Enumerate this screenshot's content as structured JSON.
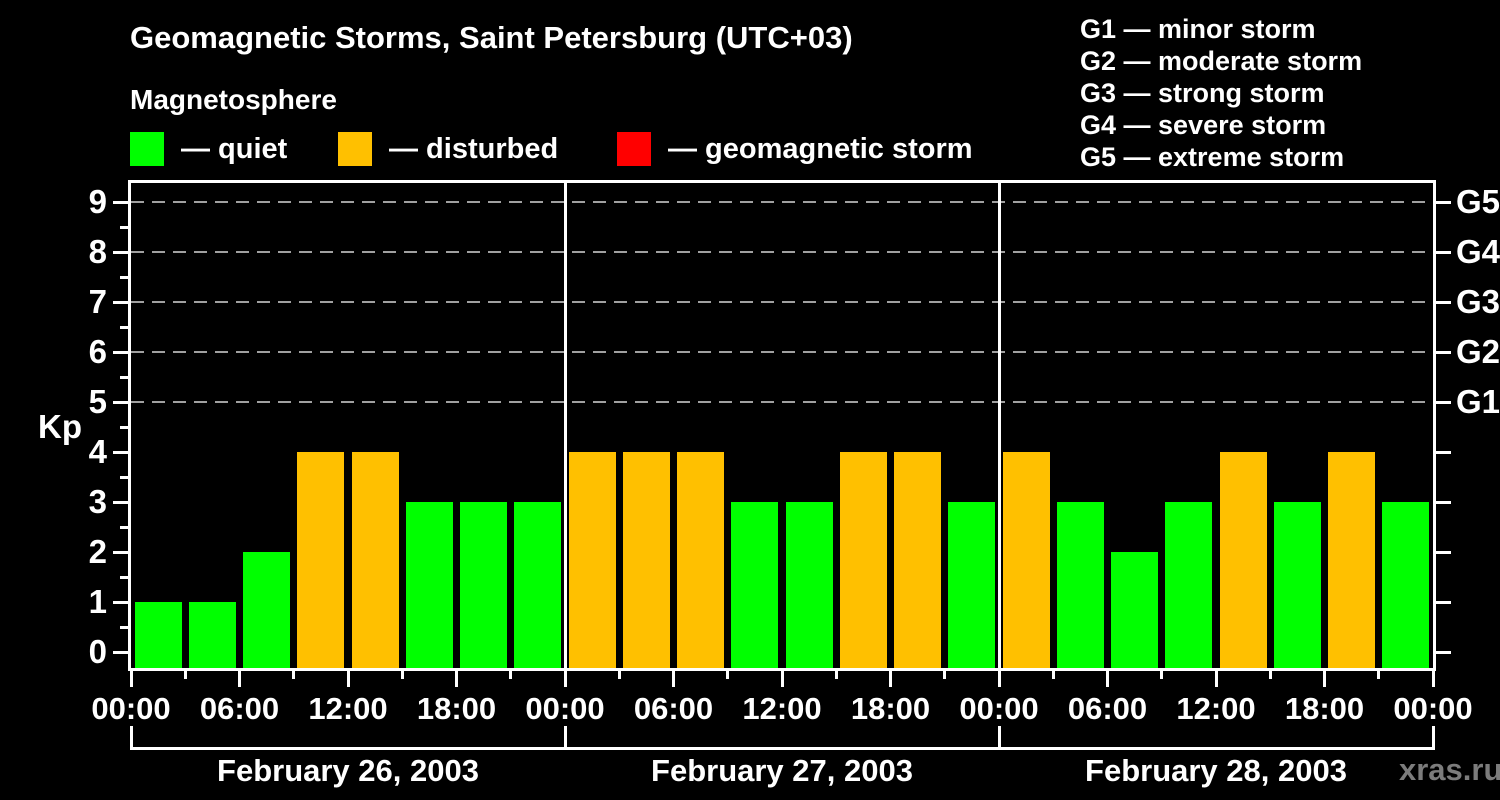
{
  "header": {
    "title": "Geomagnetic Storms, Saint Petersburg (UTC+03)",
    "subtitle": "Magnetosphere"
  },
  "legend": {
    "items": [
      {
        "key": "quiet",
        "label": "— quiet",
        "color": "#00ff00"
      },
      {
        "key": "disturbed",
        "label": "— disturbed",
        "color": "#ffc000"
      },
      {
        "key": "geomagnetic-storm",
        "label": "— geomagnetic storm",
        "color": "#ff0000"
      }
    ]
  },
  "g_scale_legend": {
    "items": [
      "G1 — minor storm",
      "G2 — moderate storm",
      "G3 — strong storm",
      "G4 — severe storm",
      "G5 — extreme storm"
    ]
  },
  "watermark": "xras.ru",
  "chart_data": {
    "type": "bar",
    "title": "Geomagnetic Storms, Saint Petersburg (UTC+03)",
    "subtitle": "Magnetosphere",
    "y_axis_label": "Kp",
    "y_ticks": [
      0,
      1,
      2,
      3,
      4,
      5,
      6,
      7,
      8,
      9
    ],
    "ylim": [
      0,
      9.4
    ],
    "grid_levels": [
      5,
      6,
      7,
      8,
      9
    ],
    "right_axis_labels": [
      {
        "kp": 5,
        "label": "G1"
      },
      {
        "kp": 6,
        "label": "G2"
      },
      {
        "kp": 7,
        "label": "G3"
      },
      {
        "kp": 8,
        "label": "G4"
      },
      {
        "kp": 9,
        "label": "G5"
      }
    ],
    "interval_hours": 3,
    "x_major_tick_labels": [
      "00:00",
      "06:00",
      "12:00",
      "18:00",
      "00:00",
      "06:00",
      "12:00",
      "18:00",
      "00:00",
      "06:00",
      "12:00",
      "18:00",
      "00:00"
    ],
    "days": [
      {
        "date": "February 26, 2003",
        "values": [
          1,
          1,
          2,
          4,
          4,
          3,
          3,
          3
        ],
        "statuses": [
          "quiet",
          "quiet",
          "quiet",
          "disturbed",
          "disturbed",
          "quiet",
          "quiet",
          "quiet"
        ]
      },
      {
        "date": "February 27, 2003",
        "values": [
          4,
          4,
          4,
          3,
          3,
          4,
          4,
          3
        ],
        "statuses": [
          "disturbed",
          "disturbed",
          "disturbed",
          "quiet",
          "quiet",
          "disturbed",
          "disturbed",
          "quiet"
        ]
      },
      {
        "date": "February 28, 2003",
        "values": [
          4,
          3,
          2,
          3,
          4,
          3,
          4,
          3
        ],
        "statuses": [
          "disturbed",
          "quiet",
          "quiet",
          "quiet",
          "disturbed",
          "quiet",
          "disturbed",
          "quiet"
        ]
      }
    ],
    "colors": {
      "quiet": "#00ff00",
      "disturbed": "#ffc000",
      "storm": "#ff0000",
      "grid": "#a0a0a0",
      "axis": "#ffffff",
      "background": "#000000"
    },
    "legend_position": "top"
  }
}
